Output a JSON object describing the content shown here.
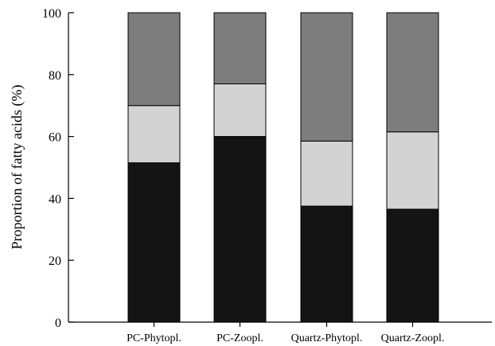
{
  "chart_data": {
    "type": "bar",
    "stacked": true,
    "categories": [
      "PC-Phytopl.",
      "PC-Zoopl.",
      "Quartz-Phytopl.",
      "Quartz-Zoopl."
    ],
    "series": [
      {
        "values": [
          51.5,
          60,
          37.5,
          36.5
        ],
        "color": "#141414"
      },
      {
        "values": [
          18.5,
          17,
          21,
          25
        ],
        "color": "#d3d3d3"
      },
      {
        "values": [
          30,
          23,
          41.5,
          38.5
        ],
        "color": "#7d7d7d"
      }
    ],
    "ylabel": "Proportion of fatty acids (%)",
    "ylim": [
      0,
      100
    ],
    "yticks": [
      0,
      20,
      40,
      60,
      80,
      100
    ],
    "grid": false,
    "legend": "none"
  }
}
